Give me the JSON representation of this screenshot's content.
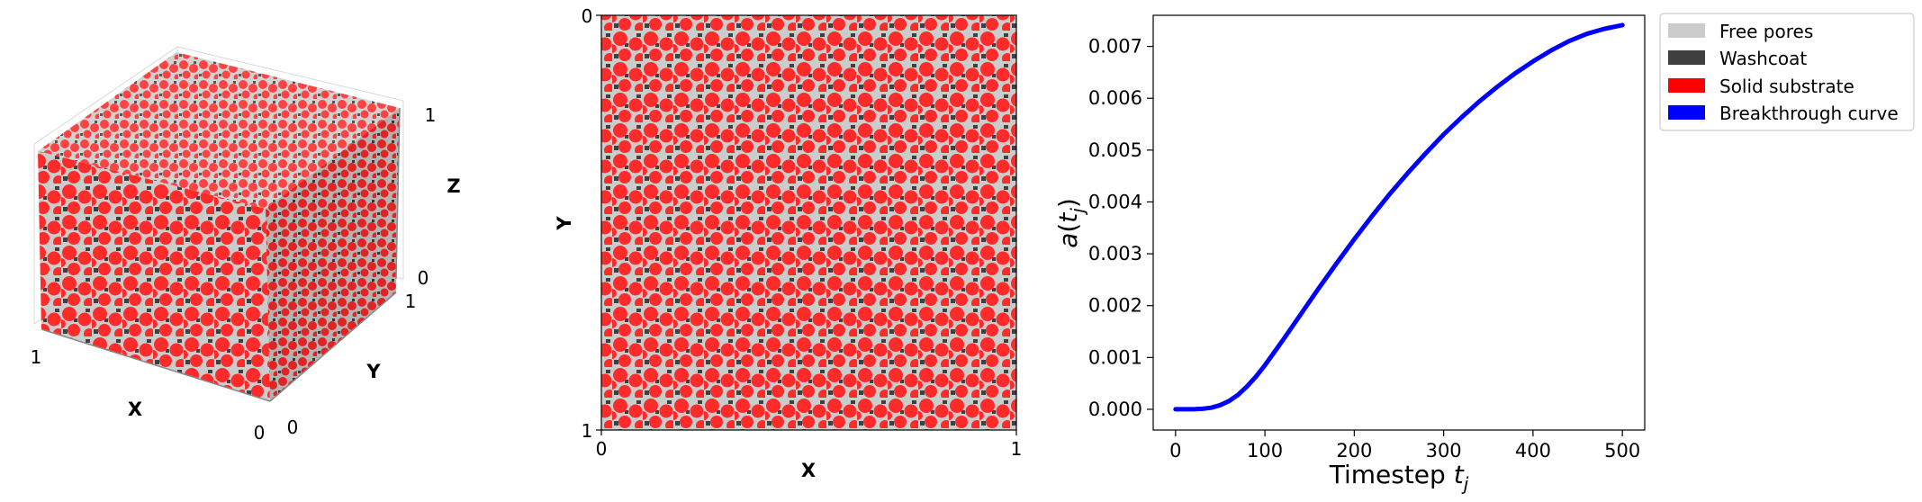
{
  "panel_cube": {
    "x_tick_min": "0",
    "x_tick_max": "1",
    "y_tick_min": "0",
    "y_tick_max": "1",
    "z_tick_min": "0",
    "z_tick_max": "1",
    "xlabel": "X",
    "ylabel": "Y",
    "zlabel": "Z"
  },
  "panel_slice": {
    "x_tick_min": "0",
    "x_tick_max": "1",
    "y_tick_top": "0",
    "y_tick_bottom": "1",
    "xlabel": "X",
    "ylabel": "Y"
  },
  "colors": {
    "free_pores": "#cccccc",
    "washcoat": "#404040",
    "solid_substrate": "#ff0000",
    "particle_fill": "#ff2a2a",
    "breakthrough_curve": "#0000ff"
  },
  "legend": {
    "placement": "outside-right-top",
    "entries": [
      "Free pores",
      "Washcoat",
      "Solid substrate",
      "Breakthrough curve"
    ]
  },
  "chart_data": {
    "type": "line",
    "xlabel_main": "Timestep ",
    "xlabel_var": "t",
    "xlabel_sub": "j",
    "ylabel_fn": "a(",
    "ylabel_var": "t",
    "ylabel_sub": "j",
    "ylabel_close": ")",
    "xlim": [
      -25,
      525
    ],
    "ylim": [
      -0.0004,
      0.0076
    ],
    "xticks": [
      0,
      100,
      200,
      300,
      400,
      500
    ],
    "xtick_labels": [
      "0",
      "100",
      "200",
      "300",
      "400",
      "500"
    ],
    "yticks": [
      0,
      0.001,
      0.002,
      0.003,
      0.004,
      0.005,
      0.006,
      0.007
    ],
    "ytick_labels": [
      "0.000",
      "0.001",
      "0.002",
      "0.003",
      "0.004",
      "0.005",
      "0.006",
      "0.007"
    ],
    "grid": false,
    "series": [
      {
        "color": "#0000ff",
        "x": [
          0,
          20,
          30,
          40,
          50,
          60,
          70,
          80,
          90,
          100,
          120,
          140,
          160,
          180,
          200,
          220,
          240,
          260,
          280,
          300,
          320,
          340,
          360,
          380,
          400,
          420,
          440,
          460,
          480,
          500
        ],
        "y": [
          0.0,
          0.0,
          1e-05,
          3e-05,
          8e-05,
          0.00016,
          0.00028,
          0.00044,
          0.00063,
          0.00085,
          0.00133,
          0.00183,
          0.00233,
          0.00281,
          0.00328,
          0.00373,
          0.00416,
          0.00456,
          0.00494,
          0.0053,
          0.00563,
          0.00594,
          0.00622,
          0.00648,
          0.00671,
          0.00692,
          0.0071,
          0.00724,
          0.00734,
          0.00741
        ]
      }
    ]
  }
}
